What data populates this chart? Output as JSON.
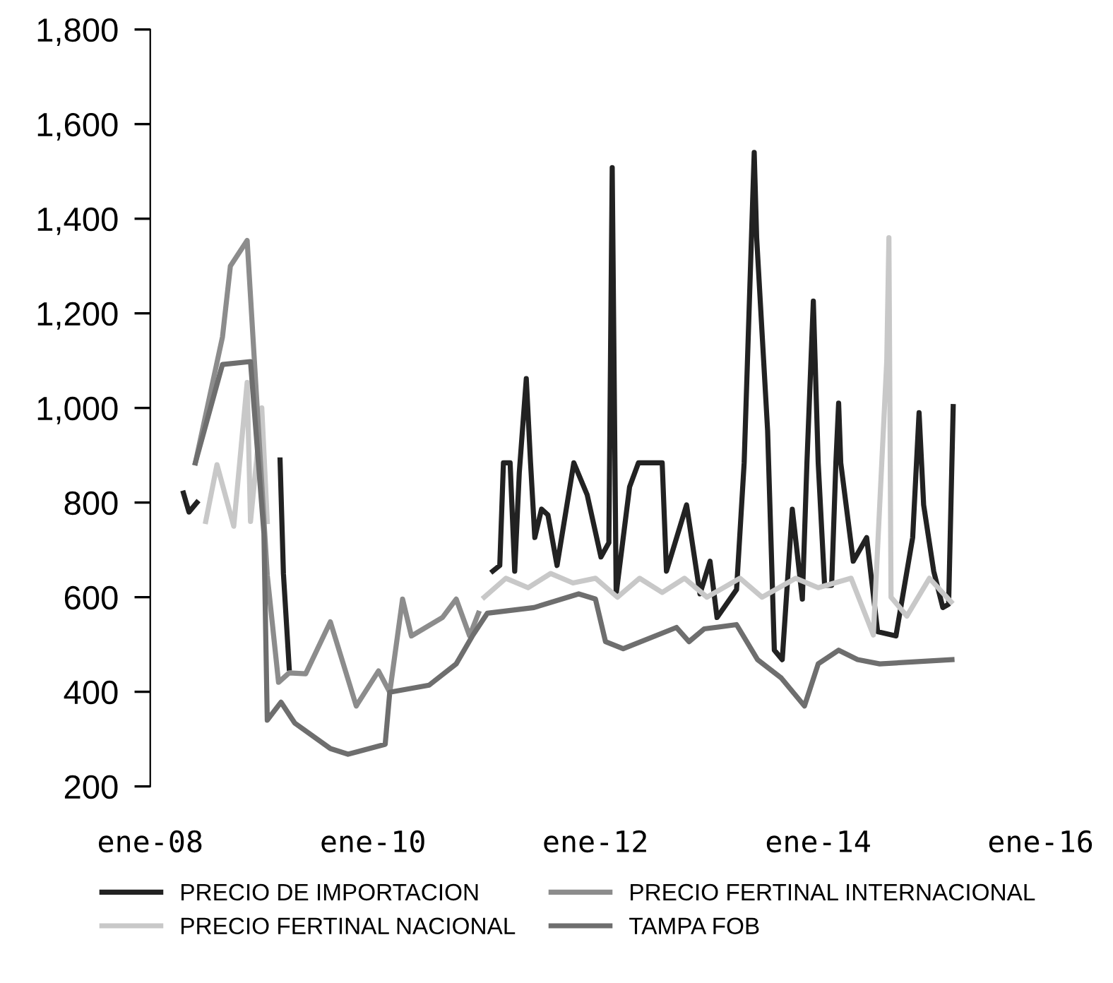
{
  "chart_data": {
    "type": "line",
    "ylim": [
      200,
      1800
    ],
    "yticks": [
      {
        "value": 200,
        "label": "200"
      },
      {
        "value": 400,
        "label": "400"
      },
      {
        "value": 600,
        "label": "600"
      },
      {
        "value": 800,
        "label": "800"
      },
      {
        "value": 1000,
        "label": "1,000"
      },
      {
        "value": 1200,
        "label": "1,200"
      },
      {
        "value": 1400,
        "label": "1,400"
      },
      {
        "value": 1600,
        "label": "1,600"
      },
      {
        "value": 1800,
        "label": "1,800"
      }
    ],
    "xlim": [
      "2008-01",
      "2016-01"
    ],
    "xticks": [
      {
        "value": "2008-01",
        "label": "ene-08"
      },
      {
        "value": "2010-01",
        "label": "ene-10"
      },
      {
        "value": "2012-01",
        "label": "ene-12"
      },
      {
        "value": "2014-01",
        "label": "ene-14"
      },
      {
        "value": "2016-01",
        "label": "ene-16"
      }
    ],
    "grid": false,
    "legend": "bottom",
    "marker": "none",
    "line_style": "solid",
    "series": [
      {
        "name": "PRECIO DE IMPORTACION",
        "color": "#222222",
        "x": [
          "2008-04-19",
          "2008-05-07",
          "2008-06-02",
          "2008-12-01",
          "2009-03-02",
          "2009-03-13",
          "2009-04-01",
          "2010-06-01",
          "2011-01-29",
          "2011-02-21",
          "2011-03-05",
          "2011-03-27",
          "2011-04-11",
          "2011-04-26",
          "2011-05-19",
          "2011-06-02",
          "2011-06-16",
          "2011-07-08",
          "2011-07-29",
          "2011-08-28",
          "2011-10-22",
          "2011-12-05",
          "2012-01-19",
          "2012-02-14",
          "2012-02-25",
          "2012-03-09",
          "2012-04-22",
          "2012-05-21",
          "2012-08-07",
          "2012-08-21",
          "2012-10-26",
          "2012-12-09",
          "2013-01-11",
          "2013-02-03",
          "2013-04-08",
          "2013-05-03",
          "2013-06-05",
          "2013-06-13",
          "2013-07-19",
          "2013-08-10",
          "2013-09-05",
          "2013-10-08",
          "2013-11-10",
          "2013-11-25",
          "2013-12-16",
          "2014-01-01",
          "2014-01-22",
          "2014-02-14",
          "2014-02-28",
          "2014-03-09",
          "2014-03-16",
          "2014-04-26",
          "2014-06-09",
          "2014-07-15",
          "2014-09-13",
          "2014-11-07",
          "2014-11-28",
          "2014-12-13",
          "2015-01-15",
          "2015-02-14",
          "2015-03-05",
          "2015-03-20"
        ],
        "values": [
          820,
          780,
          800,
          null,
          890,
          650,
          450,
          null,
          655,
          667,
          884,
          884,
          655,
          863,
          1062,
          884,
          726,
          786,
          774,
          667,
          884,
          816,
          685,
          715,
          1508,
          607,
          833,
          884,
          884,
          655,
          795,
          607,
          676,
          557,
          616,
          884,
          1540,
          1360,
          952,
          488,
          468,
          786,
          596,
          884,
          1226,
          884,
          625,
          625,
          884,
          1010,
          884,
          676,
          726,
          527,
          518,
          726,
          990,
          795,
          655,
          578,
          585,
          1003
        ]
      },
      {
        "name": "PRECIO FERTINAL NACIONAL",
        "color": "#c8c8c8",
        "x": [
          "2008-07-01",
          "2008-08-07",
          "2008-10-01",
          "2008-11-14",
          "2008-11-25",
          "2009-01-01",
          "2009-01-19",
          "2010-06-01",
          "2011-01-01",
          "2011-03-13",
          "2011-05-25",
          "2011-08-07",
          "2011-10-19",
          "2012-01-01",
          "2012-03-13",
          "2012-05-25",
          "2012-08-07",
          "2012-10-19",
          "2013-01-01",
          "2013-04-19",
          "2013-07-01",
          "2013-10-19",
          "2014-01-01",
          "2014-04-19",
          "2014-07-01",
          "2014-08-14",
          "2014-08-21",
          "2014-08-28",
          "2014-10-19",
          "2015-01-01",
          "2015-03-13"
        ],
        "values": [
          760,
          880,
          750,
          1054,
          760,
          1000,
          760,
          null,
          600,
          640,
          620,
          650,
          630,
          640,
          600,
          640,
          610,
          640,
          600,
          640,
          600,
          640,
          620,
          640,
          520,
          1100,
          1360,
          600,
          560,
          640,
          590
        ]
      },
      {
        "name": "PRECIO FERTINAL INTERNACIONAL",
        "color": "#8c8c8c",
        "x": [
          "2008-05-28",
          "2008-08-25",
          "2008-09-20",
          "2008-11-14",
          "2009-01-19",
          "2009-02-25",
          "2009-04-01",
          "2009-05-25",
          "2009-08-14",
          "2009-11-07",
          "2010-01-19",
          "2010-02-25",
          "2010-04-08",
          "2010-05-07",
          "2010-08-17",
          "2010-10-01",
          "2010-11-14",
          "2010-12-13"
        ],
        "values": [
          884,
          1150,
          1300,
          1354,
          646,
          420,
          440,
          438,
          548,
          370,
          444,
          399,
          596,
          518,
          557,
          596,
          518,
          566
        ]
      },
      {
        "name": "TAMPA FOB",
        "color": "#6e6e6e",
        "x": [
          "2008-05-28",
          "2008-08-25",
          "2008-11-25",
          "2009-01-08",
          "2009-01-19",
          "2009-03-05",
          "2009-04-19",
          "2009-08-14",
          "2009-10-11",
          "2010-02-10",
          "2010-02-25",
          "2010-07-04",
          "2010-10-01",
          "2010-11-25",
          "2011-01-11",
          "2011-06-13",
          "2011-11-07",
          "2012-01-01",
          "2012-02-03",
          "2012-04-01",
          "2012-09-23",
          "2012-11-03",
          "2012-12-23",
          "2013-04-08",
          "2013-06-16",
          "2013-09-02",
          "2013-11-17",
          "2014-01-01",
          "2014-03-09",
          "2014-05-10",
          "2014-07-22",
          "2015-03-16"
        ],
        "values": [
          884,
          1092,
          1098,
          735,
          340,
          378,
          334,
          280,
          268,
          289,
          399,
          414,
          459,
          520,
          566,
          578,
          607,
          596,
          506,
          491,
          536,
          506,
          533,
          542,
          468,
          429,
          370,
          459,
          488,
          468,
          459,
          468
        ]
      }
    ]
  }
}
